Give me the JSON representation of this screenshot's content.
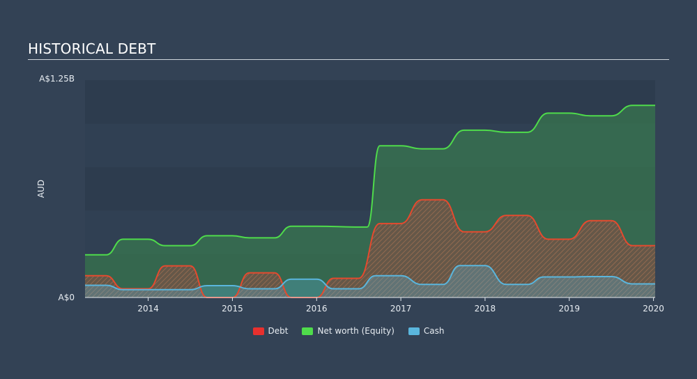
{
  "header": {
    "title": "HISTORICAL DEBT"
  },
  "chart_data": {
    "type": "area",
    "title": "HISTORICAL DEBT",
    "ylabel": "AUD",
    "ylim": [
      0,
      1.25
    ],
    "y_unit": "A$ billions",
    "y_tick_labels": [
      "A$0",
      "A$1.25B"
    ],
    "xlim": [
      2013.25,
      2020.02
    ],
    "x_ticks": [
      2014,
      2015,
      2016,
      2017,
      2018,
      2019,
      2020
    ],
    "x_tick_labels": [
      "2014",
      "2015",
      "2016",
      "2017",
      "2018",
      "2019",
      "2020"
    ],
    "grid": true,
    "legend_position": "bottom",
    "series": [
      {
        "name": "Net worth (Equity)",
        "color": "#4fdc4b",
        "x": [
          2013.25,
          2013.5,
          2013.7,
          2014.0,
          2014.2,
          2014.5,
          2014.7,
          2015.0,
          2015.2,
          2015.5,
          2015.7,
          2016.0,
          2016.5,
          2016.6,
          2016.75,
          2017.0,
          2017.25,
          2017.5,
          2017.75,
          2018.0,
          2018.25,
          2018.5,
          2018.75,
          2019.0,
          2019.25,
          2019.5,
          2019.75,
          2020.02
        ],
        "values": [
          0.245,
          0.245,
          0.335,
          0.335,
          0.298,
          0.298,
          0.355,
          0.355,
          0.343,
          0.343,
          0.41,
          0.41,
          0.405,
          0.405,
          0.872,
          0.872,
          0.855,
          0.855,
          0.962,
          0.962,
          0.95,
          0.95,
          1.06,
          1.06,
          1.045,
          1.045,
          1.105,
          1.105
        ]
      },
      {
        "name": "Debt",
        "color": "#e64a2e",
        "x": [
          2013.25,
          2013.5,
          2013.7,
          2014.0,
          2014.2,
          2014.5,
          2014.7,
          2015.0,
          2015.2,
          2015.5,
          2015.7,
          2016.0,
          2016.2,
          2016.5,
          2016.75,
          2017.0,
          2017.25,
          2017.5,
          2017.75,
          2018.0,
          2018.25,
          2018.5,
          2018.75,
          2019.0,
          2019.25,
          2019.5,
          2019.75,
          2020.02
        ],
        "values": [
          0.125,
          0.125,
          0.05,
          0.05,
          0.182,
          0.182,
          0.0,
          0.0,
          0.142,
          0.142,
          0.0,
          0.0,
          0.11,
          0.11,
          0.425,
          0.425,
          0.562,
          0.562,
          0.378,
          0.378,
          0.472,
          0.472,
          0.335,
          0.335,
          0.442,
          0.442,
          0.298,
          0.298
        ]
      },
      {
        "name": "Cash",
        "color": "#5ab6dd",
        "x": [
          2013.25,
          2013.5,
          2013.7,
          2014.0,
          2014.2,
          2014.5,
          2014.7,
          2015.0,
          2015.2,
          2015.5,
          2015.7,
          2016.0,
          2016.2,
          2016.5,
          2016.7,
          2017.0,
          2017.25,
          2017.5,
          2017.7,
          2018.0,
          2018.25,
          2018.5,
          2018.7,
          2019.0,
          2019.25,
          2019.5,
          2019.75,
          2020.02
        ],
        "values": [
          0.07,
          0.07,
          0.045,
          0.045,
          0.045,
          0.045,
          0.068,
          0.068,
          0.05,
          0.05,
          0.105,
          0.105,
          0.05,
          0.05,
          0.125,
          0.125,
          0.075,
          0.075,
          0.183,
          0.183,
          0.075,
          0.075,
          0.118,
          0.118,
          0.12,
          0.12,
          0.078,
          0.078
        ]
      }
    ]
  }
}
